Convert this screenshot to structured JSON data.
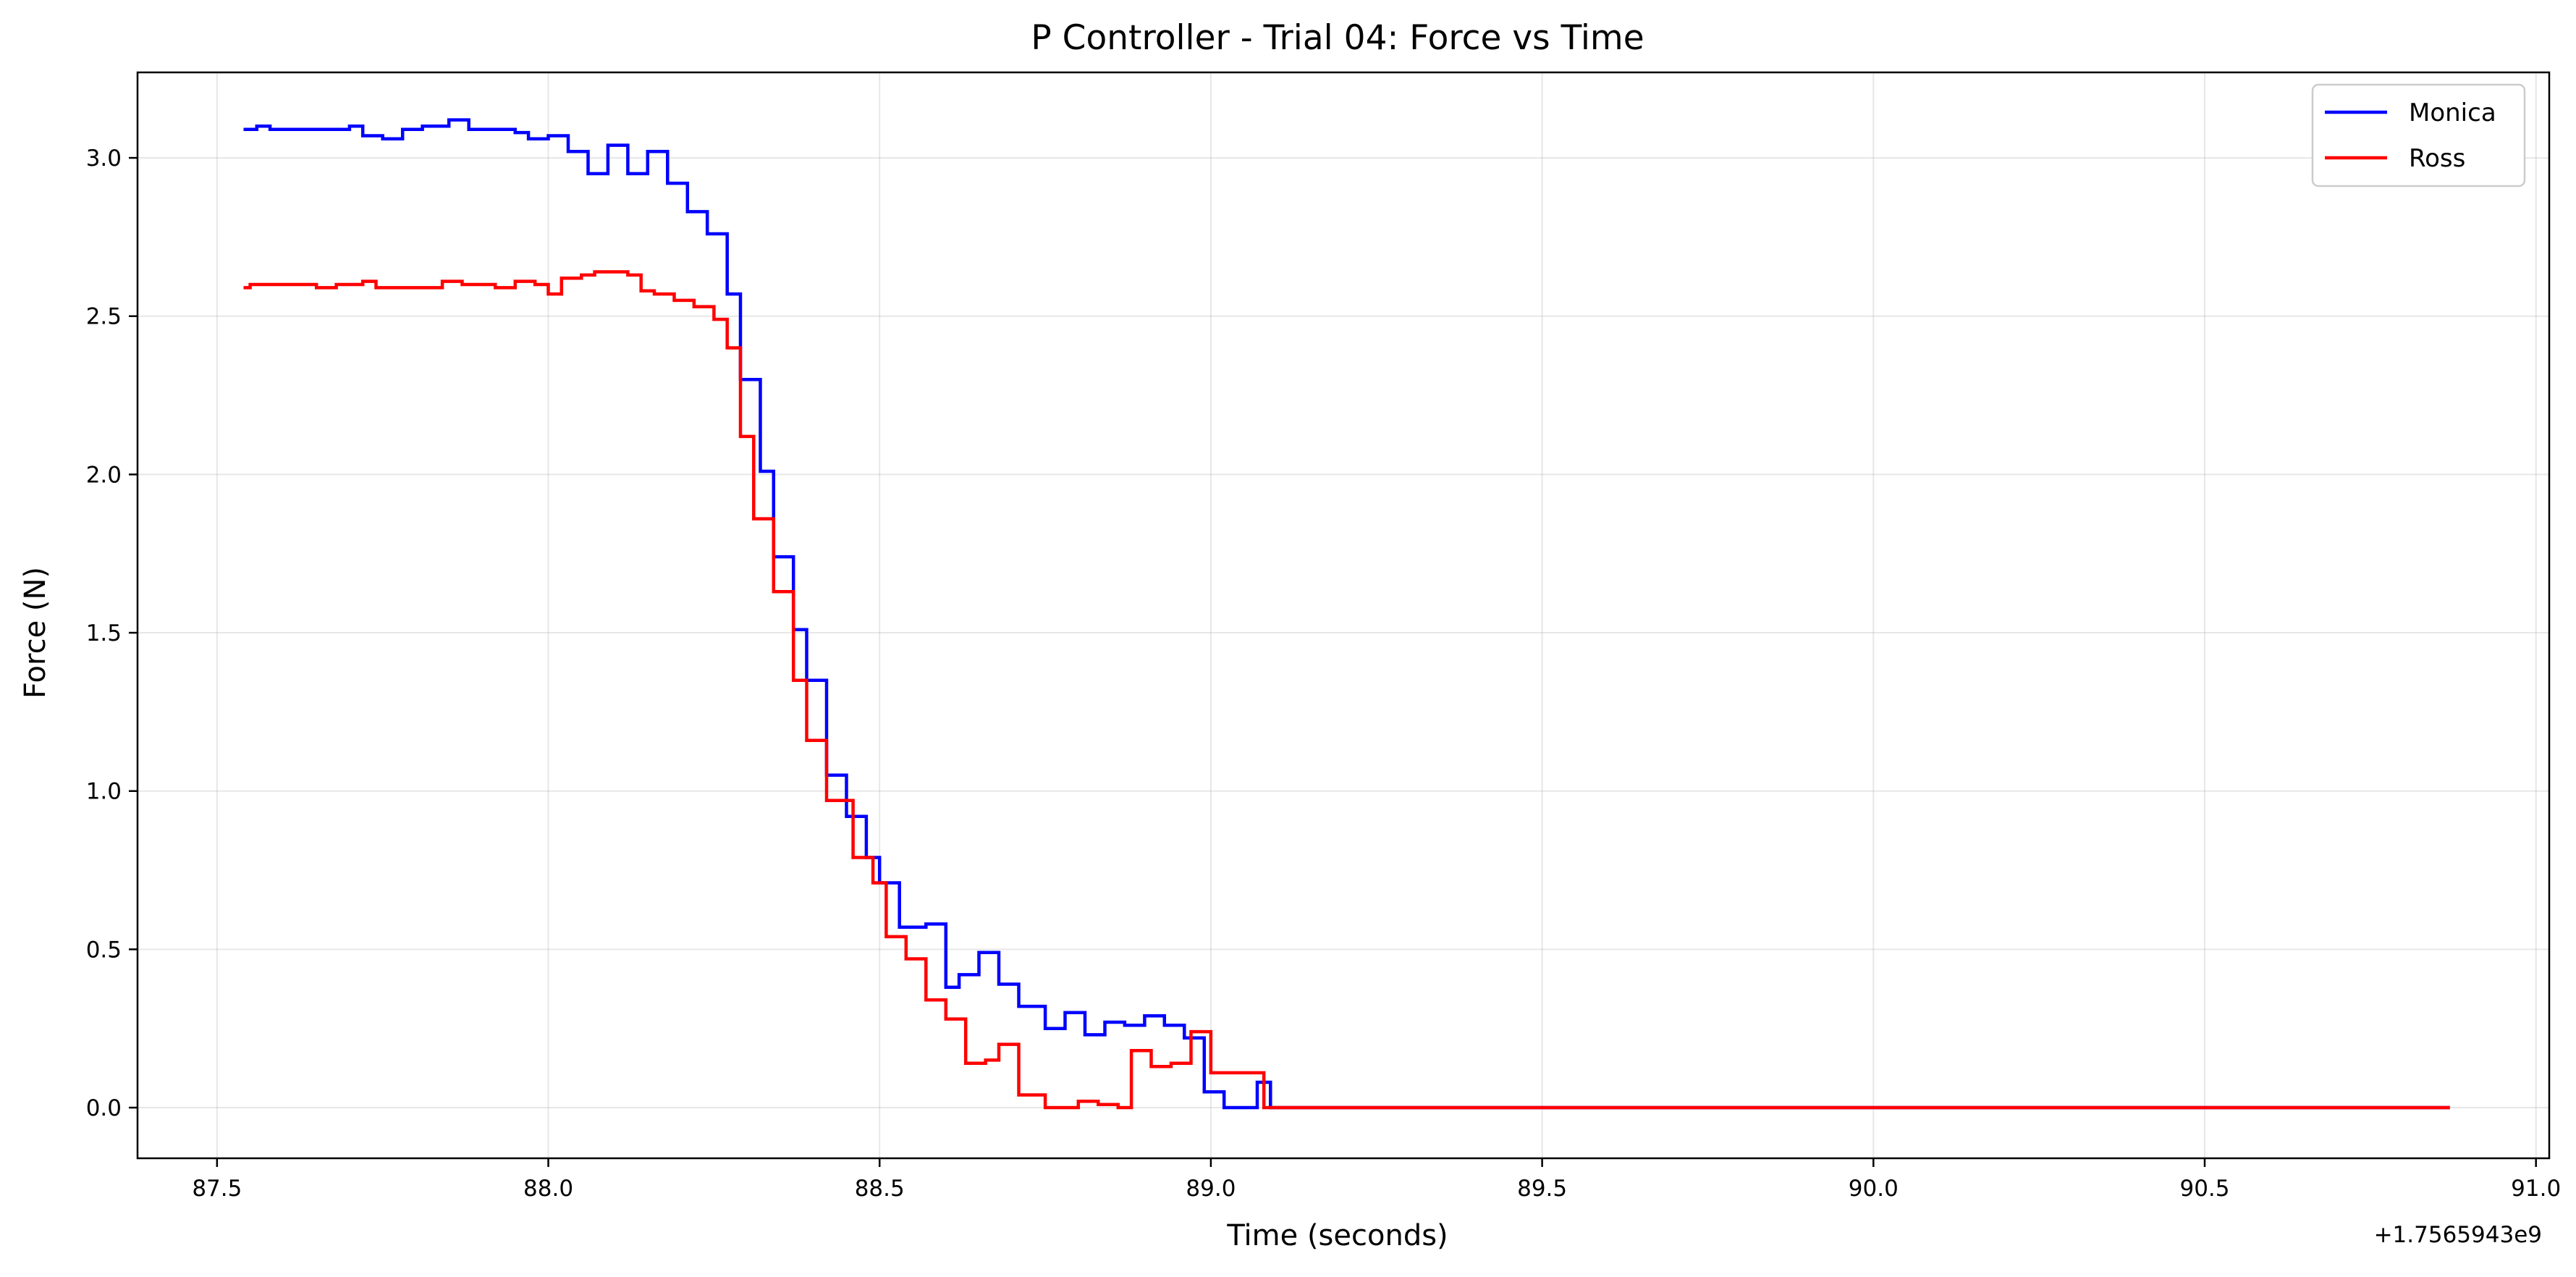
{
  "chart_data": {
    "type": "line",
    "title": "P Controller - Trial 04: Force vs Time",
    "xlabel": "Time (seconds)",
    "ylabel": "Force (N)",
    "x_offset_label": "+1.7565943e9",
    "xlim": [
      87.38,
      91.02
    ],
    "ylim": [
      -0.16,
      3.27
    ],
    "xticks": [
      87.5,
      88.0,
      88.5,
      89.0,
      89.5,
      90.0,
      90.5,
      91.0
    ],
    "xtick_labels": [
      "87.5",
      "88.0",
      "88.5",
      "89.0",
      "89.5",
      "90.0",
      "90.5",
      "91.0"
    ],
    "yticks": [
      0.0,
      0.5,
      1.0,
      1.5,
      2.0,
      2.5,
      3.0
    ],
    "ytick_labels": [
      "0.0",
      "0.5",
      "1.0",
      "1.5",
      "2.0",
      "2.5",
      "3.0"
    ],
    "grid": true,
    "legend_position": "top-right",
    "step": true,
    "series": [
      {
        "name": "Monica",
        "color": "#0000ff",
        "x": [
          87.54,
          87.56,
          87.58,
          87.6,
          87.7,
          87.72,
          87.75,
          87.78,
          87.81,
          87.85,
          87.88,
          87.95,
          87.97,
          88.0,
          88.03,
          88.06,
          88.09,
          88.12,
          88.15,
          88.18,
          88.21,
          88.24,
          88.27,
          88.29,
          88.32,
          88.34,
          88.37,
          88.39,
          88.42,
          88.45,
          88.48,
          88.5,
          88.53,
          88.57,
          88.6,
          88.62,
          88.65,
          88.68,
          88.71,
          88.75,
          88.78,
          88.81,
          88.84,
          88.87,
          88.9,
          88.93,
          88.96,
          88.99,
          89.02,
          89.05,
          89.07,
          89.09,
          89.14,
          90.87
        ],
        "y": [
          3.09,
          3.1,
          3.09,
          3.09,
          3.1,
          3.07,
          3.06,
          3.09,
          3.1,
          3.12,
          3.09,
          3.08,
          3.06,
          3.07,
          3.02,
          2.95,
          3.04,
          2.95,
          3.02,
          2.92,
          2.83,
          2.76,
          2.57,
          2.3,
          2.01,
          1.74,
          1.51,
          1.35,
          1.05,
          0.92,
          0.79,
          0.71,
          0.57,
          0.58,
          0.38,
          0.42,
          0.49,
          0.39,
          0.32,
          0.25,
          0.3,
          0.23,
          0.27,
          0.26,
          0.29,
          0.26,
          0.22,
          0.05,
          0.0,
          0.0,
          0.08,
          0.0,
          0.0,
          0.0
        ]
      },
      {
        "name": "Ross",
        "color": "#ff0000",
        "x": [
          87.54,
          87.55,
          87.58,
          87.65,
          87.68,
          87.72,
          87.74,
          87.77,
          87.8,
          87.84,
          87.87,
          87.92,
          87.95,
          87.98,
          88.0,
          88.02,
          88.05,
          88.07,
          88.1,
          88.12,
          88.14,
          88.16,
          88.19,
          88.22,
          88.25,
          88.27,
          88.29,
          88.31,
          88.34,
          88.37,
          88.39,
          88.42,
          88.46,
          88.49,
          88.51,
          88.54,
          88.57,
          88.6,
          88.63,
          88.66,
          88.68,
          88.71,
          88.75,
          88.77,
          88.8,
          88.83,
          88.86,
          88.88,
          88.91,
          88.94,
          88.97,
          89.0,
          89.02,
          89.05,
          89.08,
          89.11,
          89.14,
          90.87
        ],
        "y": [
          2.59,
          2.6,
          2.6,
          2.59,
          2.6,
          2.61,
          2.59,
          2.59,
          2.59,
          2.61,
          2.6,
          2.59,
          2.61,
          2.6,
          2.57,
          2.62,
          2.63,
          2.64,
          2.64,
          2.63,
          2.58,
          2.57,
          2.55,
          2.53,
          2.49,
          2.4,
          2.12,
          1.86,
          1.63,
          1.35,
          1.16,
          0.97,
          0.79,
          0.71,
          0.54,
          0.47,
          0.34,
          0.28,
          0.14,
          0.15,
          0.2,
          0.04,
          0.0,
          0.0,
          0.02,
          0.01,
          0.0,
          0.18,
          0.13,
          0.14,
          0.24,
          0.11,
          0.11,
          0.11,
          0.0,
          0.0,
          0.0,
          0.0
        ]
      }
    ]
  }
}
